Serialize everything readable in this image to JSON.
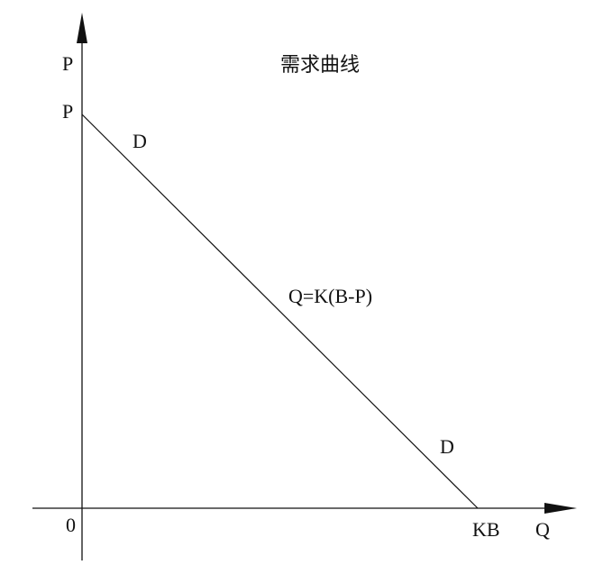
{
  "title": "需求曲线",
  "axes": {
    "y_axis_label": "P",
    "x_axis_label": "Q",
    "origin_label": "0"
  },
  "curve": {
    "name_upper": "D",
    "name_lower": "D",
    "equation": "Q=K(B-P)",
    "y_intercept_label": "P",
    "x_intercept_label": "KB"
  }
}
